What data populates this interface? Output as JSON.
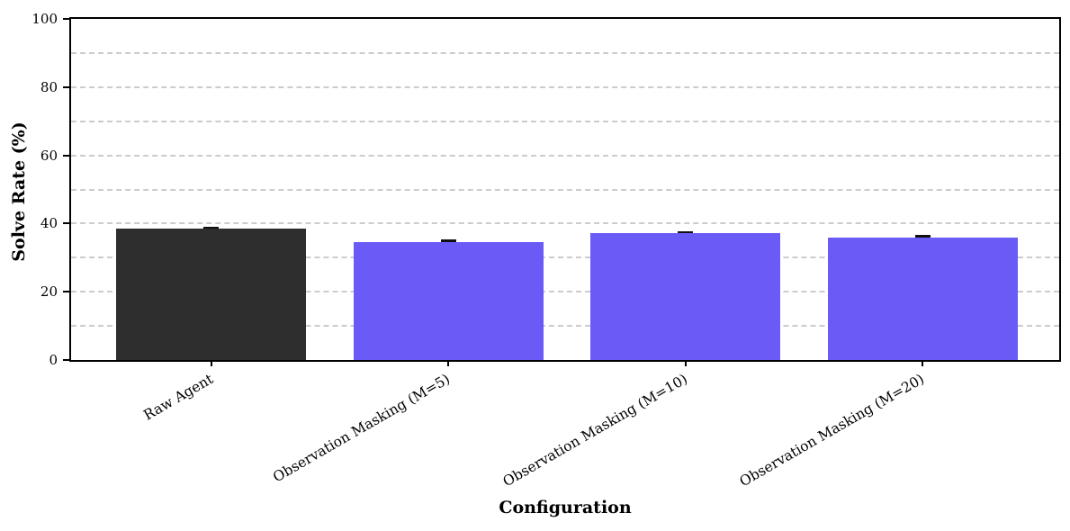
{
  "chart_data": {
    "type": "bar",
    "title": "",
    "xlabel": "Configuration",
    "ylabel": "Solve Rate (%)",
    "categories": [
      "Raw Agent",
      "Observation Masking (M=5)",
      "Observation Masking (M=10)",
      "Observation Masking (M=20)"
    ],
    "values": [
      38.4,
      34.6,
      37.1,
      35.9
    ],
    "errors": [
      0.4,
      0.4,
      0.4,
      0.4
    ],
    "bar_colors": [
      "#2e2e2e",
      "#6a5bf7",
      "#6a5bf7",
      "#6a5bf7"
    ],
    "ylim": [
      0,
      100
    ],
    "yticks": [
      0,
      20,
      40,
      60,
      80,
      100
    ],
    "gridline_step": 10,
    "grid": "horizontal, dashed, light gray, behind bars",
    "legend": "none",
    "xtick_rotation_deg": 30,
    "error_cap_color": "#111111",
    "gridline_color": "#cccccc",
    "spine_color": "#000000"
  }
}
